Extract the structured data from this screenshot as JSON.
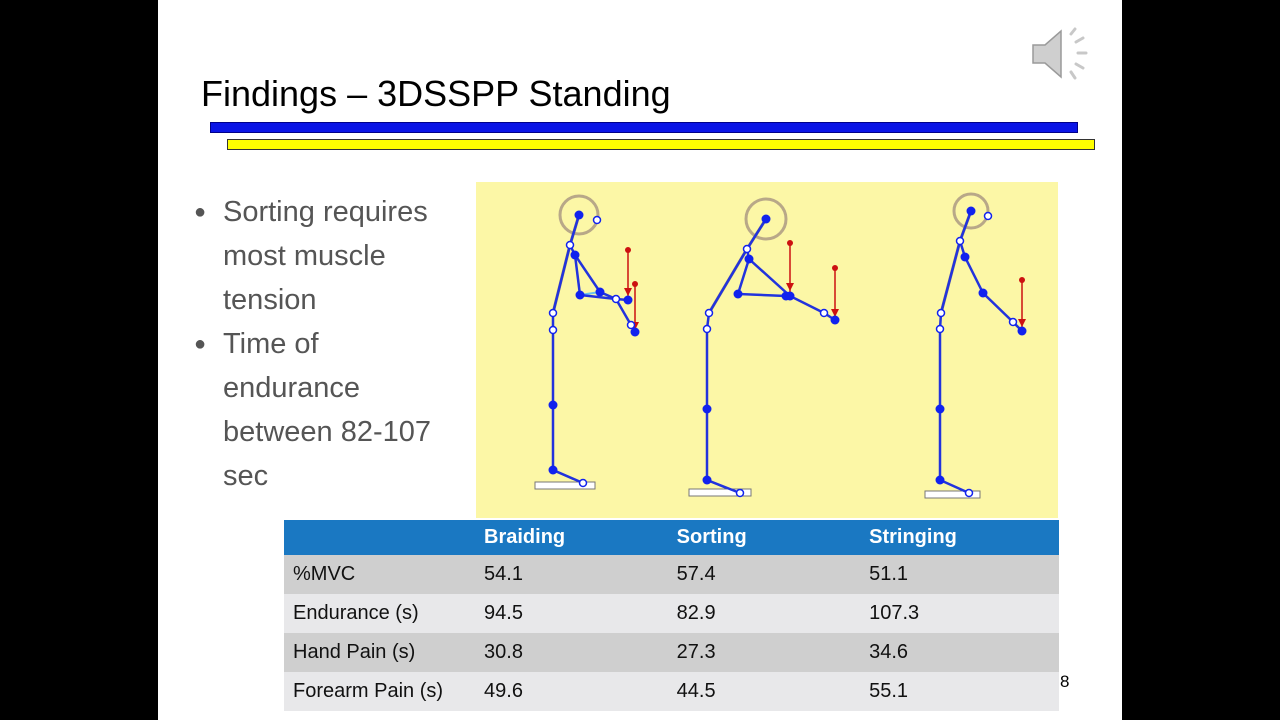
{
  "slide": {
    "title": "Findings – 3DSSPP Standing",
    "page_number": "8"
  },
  "icons": {
    "audio": "speaker-icon"
  },
  "colors": {
    "title_bar_blue": "#0a14e6",
    "title_bar_yellow": "#ffff00",
    "figure_background": "#fcf7a6",
    "table_header": "#1a78c2"
  },
  "bullets": [
    "Sorting requires most muscle tension",
    "Time of endurance between 82-107 sec"
  ],
  "table": {
    "headers": [
      "",
      "Braiding",
      "Sorting",
      "Stringing"
    ],
    "rows": [
      [
        "%MVC",
        "54.1",
        "57.4",
        "51.1"
      ],
      [
        "Endurance (s)",
        "94.5",
        "82.9",
        "107.3"
      ],
      [
        "Hand Pain (s)",
        "30.8",
        "27.3",
        "34.6"
      ],
      [
        "Forearm Pain (s)",
        "49.6",
        "44.5",
        "55.1"
      ]
    ]
  }
}
